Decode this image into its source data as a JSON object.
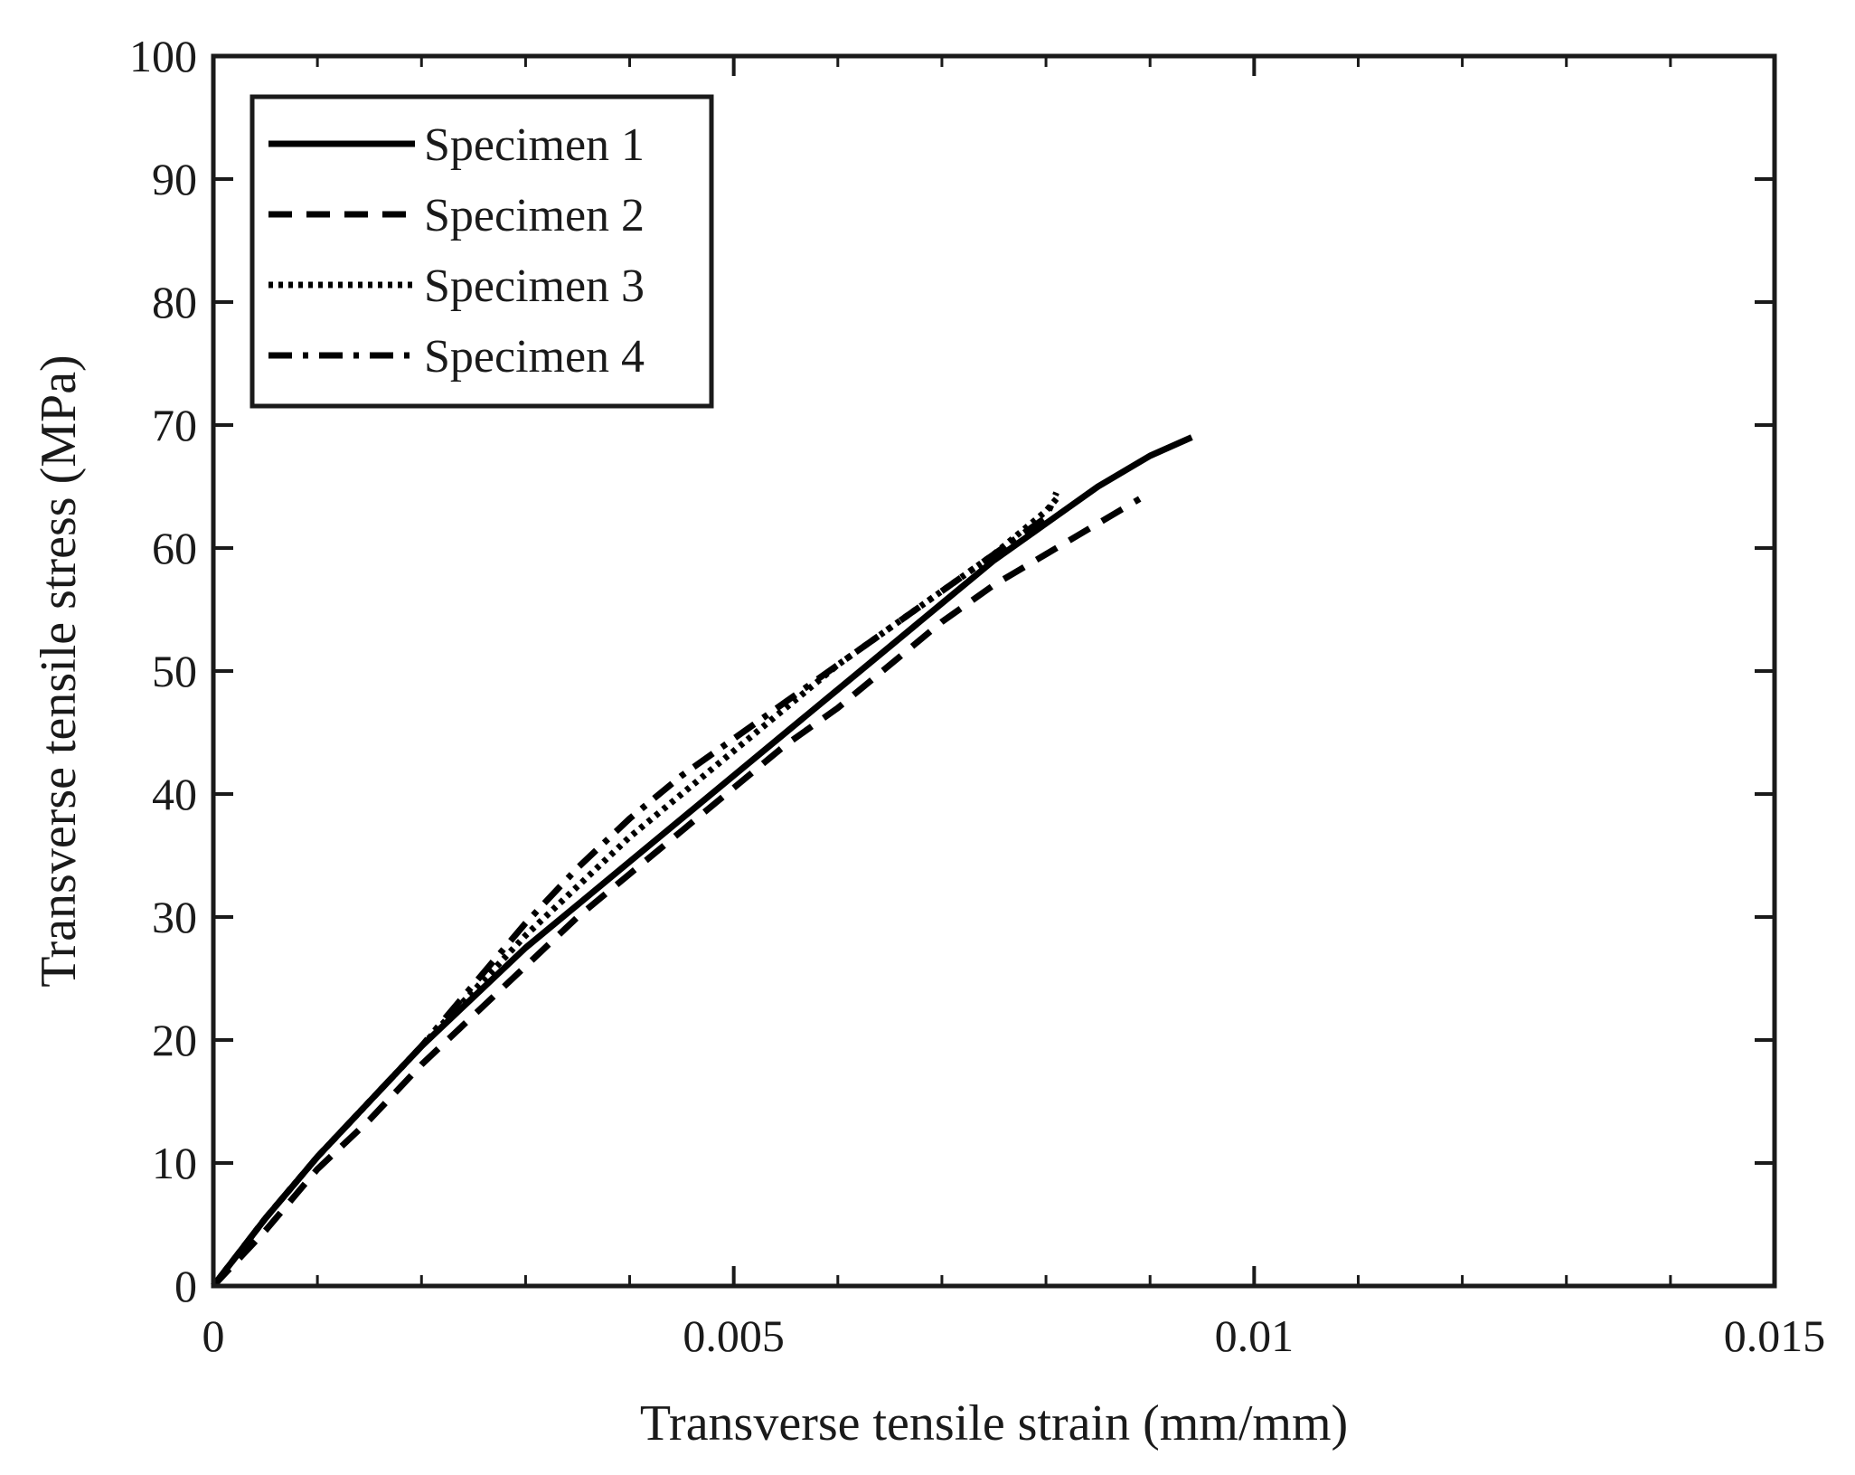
{
  "chart_data": {
    "type": "line",
    "title": "",
    "xlabel": "Transverse tensile strain (mm/mm)",
    "ylabel": "Transverse tensile stress (MPa)",
    "xlim": [
      0,
      0.015
    ],
    "ylim": [
      0,
      100
    ],
    "xticks": [
      {
        "value": 0,
        "label": "0"
      },
      {
        "value": 0.005,
        "label": "0.005"
      },
      {
        "value": 0.01,
        "label": "0.01"
      },
      {
        "value": 0.015,
        "label": "0.015"
      }
    ],
    "yticks": [
      {
        "value": 0,
        "label": "0"
      },
      {
        "value": 10,
        "label": "10"
      },
      {
        "value": 20,
        "label": "20"
      },
      {
        "value": 30,
        "label": "30"
      },
      {
        "value": 40,
        "label": "40"
      },
      {
        "value": 50,
        "label": "50"
      },
      {
        "value": 60,
        "label": "60"
      },
      {
        "value": 70,
        "label": "70"
      },
      {
        "value": 80,
        "label": "80"
      },
      {
        "value": 90,
        "label": "90"
      },
      {
        "value": 100,
        "label": "100"
      }
    ],
    "x_minor_step": 0.001,
    "y_minor_step": 10,
    "grid": false,
    "legend_position": "top-left",
    "line_color": "#000000",
    "series": [
      {
        "name": "Specimen 1",
        "line_style": "solid",
        "x": [
          0,
          0.0005,
          0.001,
          0.0015,
          0.002,
          0.0025,
          0.003,
          0.0035,
          0.004,
          0.0045,
          0.005,
          0.0055,
          0.006,
          0.0065,
          0.007,
          0.0075,
          0.008,
          0.0085,
          0.009,
          0.0094
        ],
        "y": [
          0,
          5.5,
          10.5,
          15,
          19.5,
          23.5,
          27.5,
          31,
          34.5,
          38,
          41.5,
          45,
          48.5,
          52,
          55.5,
          59,
          62,
          65,
          67.5,
          69
        ]
      },
      {
        "name": "Specimen 2",
        "line_style": "dashed",
        "x": [
          0,
          0.0005,
          0.001,
          0.0015,
          0.002,
          0.0025,
          0.003,
          0.0035,
          0.004,
          0.0045,
          0.005,
          0.0055,
          0.006,
          0.0065,
          0.007,
          0.0075,
          0.008,
          0.0085,
          0.0089
        ],
        "y": [
          0,
          4.5,
          9.5,
          13.5,
          18,
          22,
          26,
          30,
          33.5,
          37,
          40.5,
          44,
          47,
          50.5,
          54,
          57,
          59.5,
          62,
          64
        ]
      },
      {
        "name": "Specimen 3",
        "line_style": "dotted",
        "x": [
          0,
          0.0005,
          0.001,
          0.0015,
          0.002,
          0.0025,
          0.003,
          0.0035,
          0.004,
          0.0045,
          0.005,
          0.0055,
          0.006,
          0.0065,
          0.007,
          0.0075,
          0.008,
          0.0081
        ],
        "y": [
          0,
          5.5,
          10.5,
          15,
          19.5,
          24,
          28.5,
          32.5,
          36.5,
          40,
          43.5,
          47,
          50.5,
          53.5,
          56.5,
          59.5,
          63,
          64
        ]
      },
      {
        "name": "Specimen 4",
        "line_style": "dashdot",
        "x": [
          0,
          0.0005,
          0.001,
          0.0015,
          0.002,
          0.0025,
          0.003,
          0.0035,
          0.004,
          0.0045,
          0.005,
          0.0055,
          0.006,
          0.0065,
          0.007,
          0.0075,
          0.008,
          0.0081
        ],
        "y": [
          0,
          5.5,
          10.5,
          15,
          19.5,
          24.5,
          29.5,
          34,
          38,
          41.5,
          44.5,
          47.5,
          50.5,
          53.5,
          56.5,
          59.5,
          62.5,
          64.5
        ]
      }
    ]
  }
}
